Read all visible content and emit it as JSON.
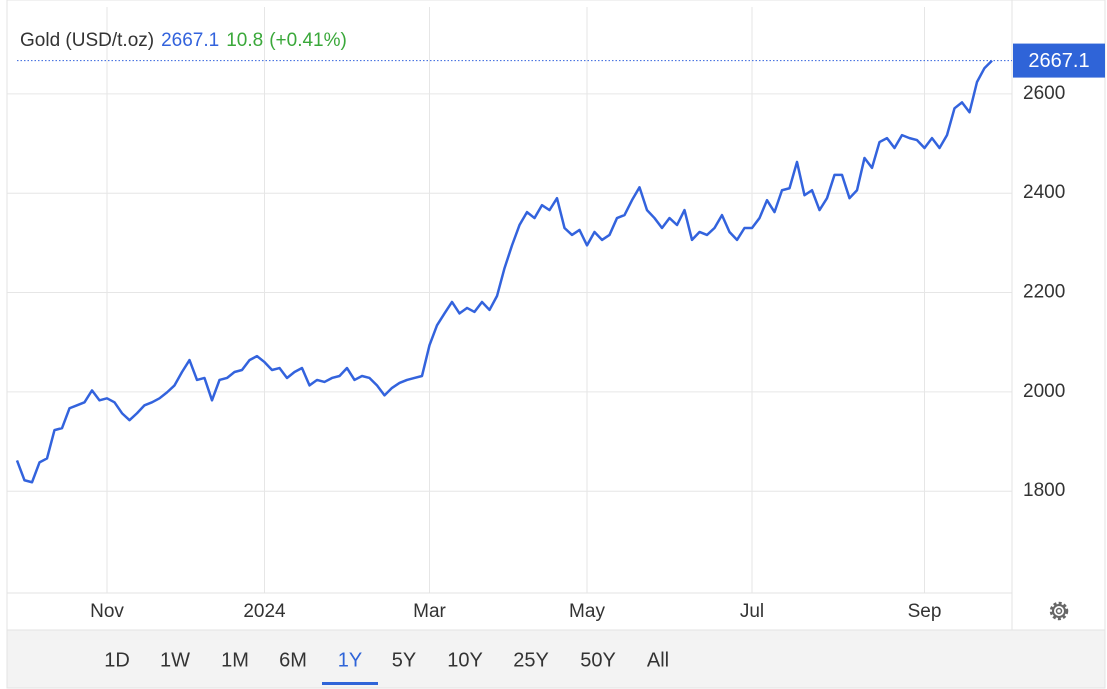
{
  "header": {
    "name": "Gold (USD/t.oz)",
    "change": 10.8,
    "change_pct": "(+0.41%)"
  },
  "chart_data": {
    "type": "line",
    "categories": [
      null,
      null,
      null,
      null,
      null,
      null,
      null,
      null,
      null,
      null,
      null,
      null,
      "Nov",
      null,
      null,
      null,
      null,
      null,
      null,
      null,
      null,
      null,
      null,
      null,
      null,
      null,
      null,
      null,
      null,
      null,
      null,
      null,
      null,
      "2024",
      null,
      null,
      null,
      null,
      null,
      null,
      null,
      null,
      null,
      null,
      null,
      null,
      null,
      null,
      null,
      null,
      null,
      null,
      null,
      null,
      null,
      "Mar",
      null,
      null,
      null,
      null,
      null,
      null,
      null,
      null,
      null,
      null,
      null,
      null,
      null,
      null,
      null,
      null,
      null,
      null,
      null,
      null,
      "May",
      null,
      null,
      null,
      null,
      null,
      null,
      null,
      null,
      null,
      null,
      null,
      null,
      null,
      null,
      null,
      null,
      null,
      null,
      null,
      null,
      null,
      "Jul",
      null,
      null,
      null,
      null,
      null,
      null,
      null,
      null,
      null,
      null,
      null,
      null,
      null,
      null,
      null,
      null,
      null,
      null,
      null,
      null,
      null,
      null,
      "Sep",
      null,
      null,
      null,
      null,
      null,
      null,
      null,
      null,
      null
    ],
    "series": [
      {
        "name": "Gold",
        "color": "#3363dd",
        "values": [
          1862,
          1822,
          1818,
          1858,
          1866,
          1923,
          1927,
          1967,
          1973,
          1979,
          2003,
          1983,
          1987,
          1979,
          1957,
          1943,
          1957,
          1973,
          1979,
          1987,
          1999,
          2013,
          2040,
          2064,
          2024,
          2028,
          1983,
          2024,
          2028,
          2040,
          2044,
          2064,
          2072,
          2060,
          2044,
          2048,
          2028,
          2040,
          2048,
          2013,
          2024,
          2020,
          2028,
          2032,
          2048,
          2024,
          2032,
          2028,
          2013,
          1993,
          2008,
          2018,
          2024,
          2028,
          2032,
          2094,
          2134,
          2158,
          2181,
          2158,
          2169,
          2161,
          2181,
          2165,
          2193,
          2249,
          2295,
          2336,
          2362,
          2350,
          2376,
          2366,
          2390,
          2330,
          2316,
          2326,
          2295,
          2322,
          2306,
          2316,
          2350,
          2356,
          2386,
          2412,
          2366,
          2350,
          2330,
          2350,
          2336,
          2366,
          2306,
          2322,
          2316,
          2330,
          2356,
          2322,
          2306,
          2330,
          2330,
          2350,
          2386,
          2362,
          2406,
          2410,
          2463,
          2396,
          2406,
          2366,
          2390,
          2437,
          2437,
          2390,
          2406,
          2471,
          2451,
          2503,
          2511,
          2491,
          2517,
          2511,
          2507,
          2491,
          2511,
          2491,
          2517,
          2571,
          2583,
          2563,
          2624,
          2652,
          2667.1
        ]
      }
    ],
    "ylim": [
      1595,
      2775
    ],
    "yticks": [
      1800,
      2000,
      2200,
      2400,
      2600
    ],
    "grid": true
  },
  "range_buttons": [
    "1D",
    "1W",
    "1M",
    "6M",
    "1Y",
    "5Y",
    "10Y",
    "25Y",
    "50Y",
    "All"
  ],
  "active_range": "1Y"
}
